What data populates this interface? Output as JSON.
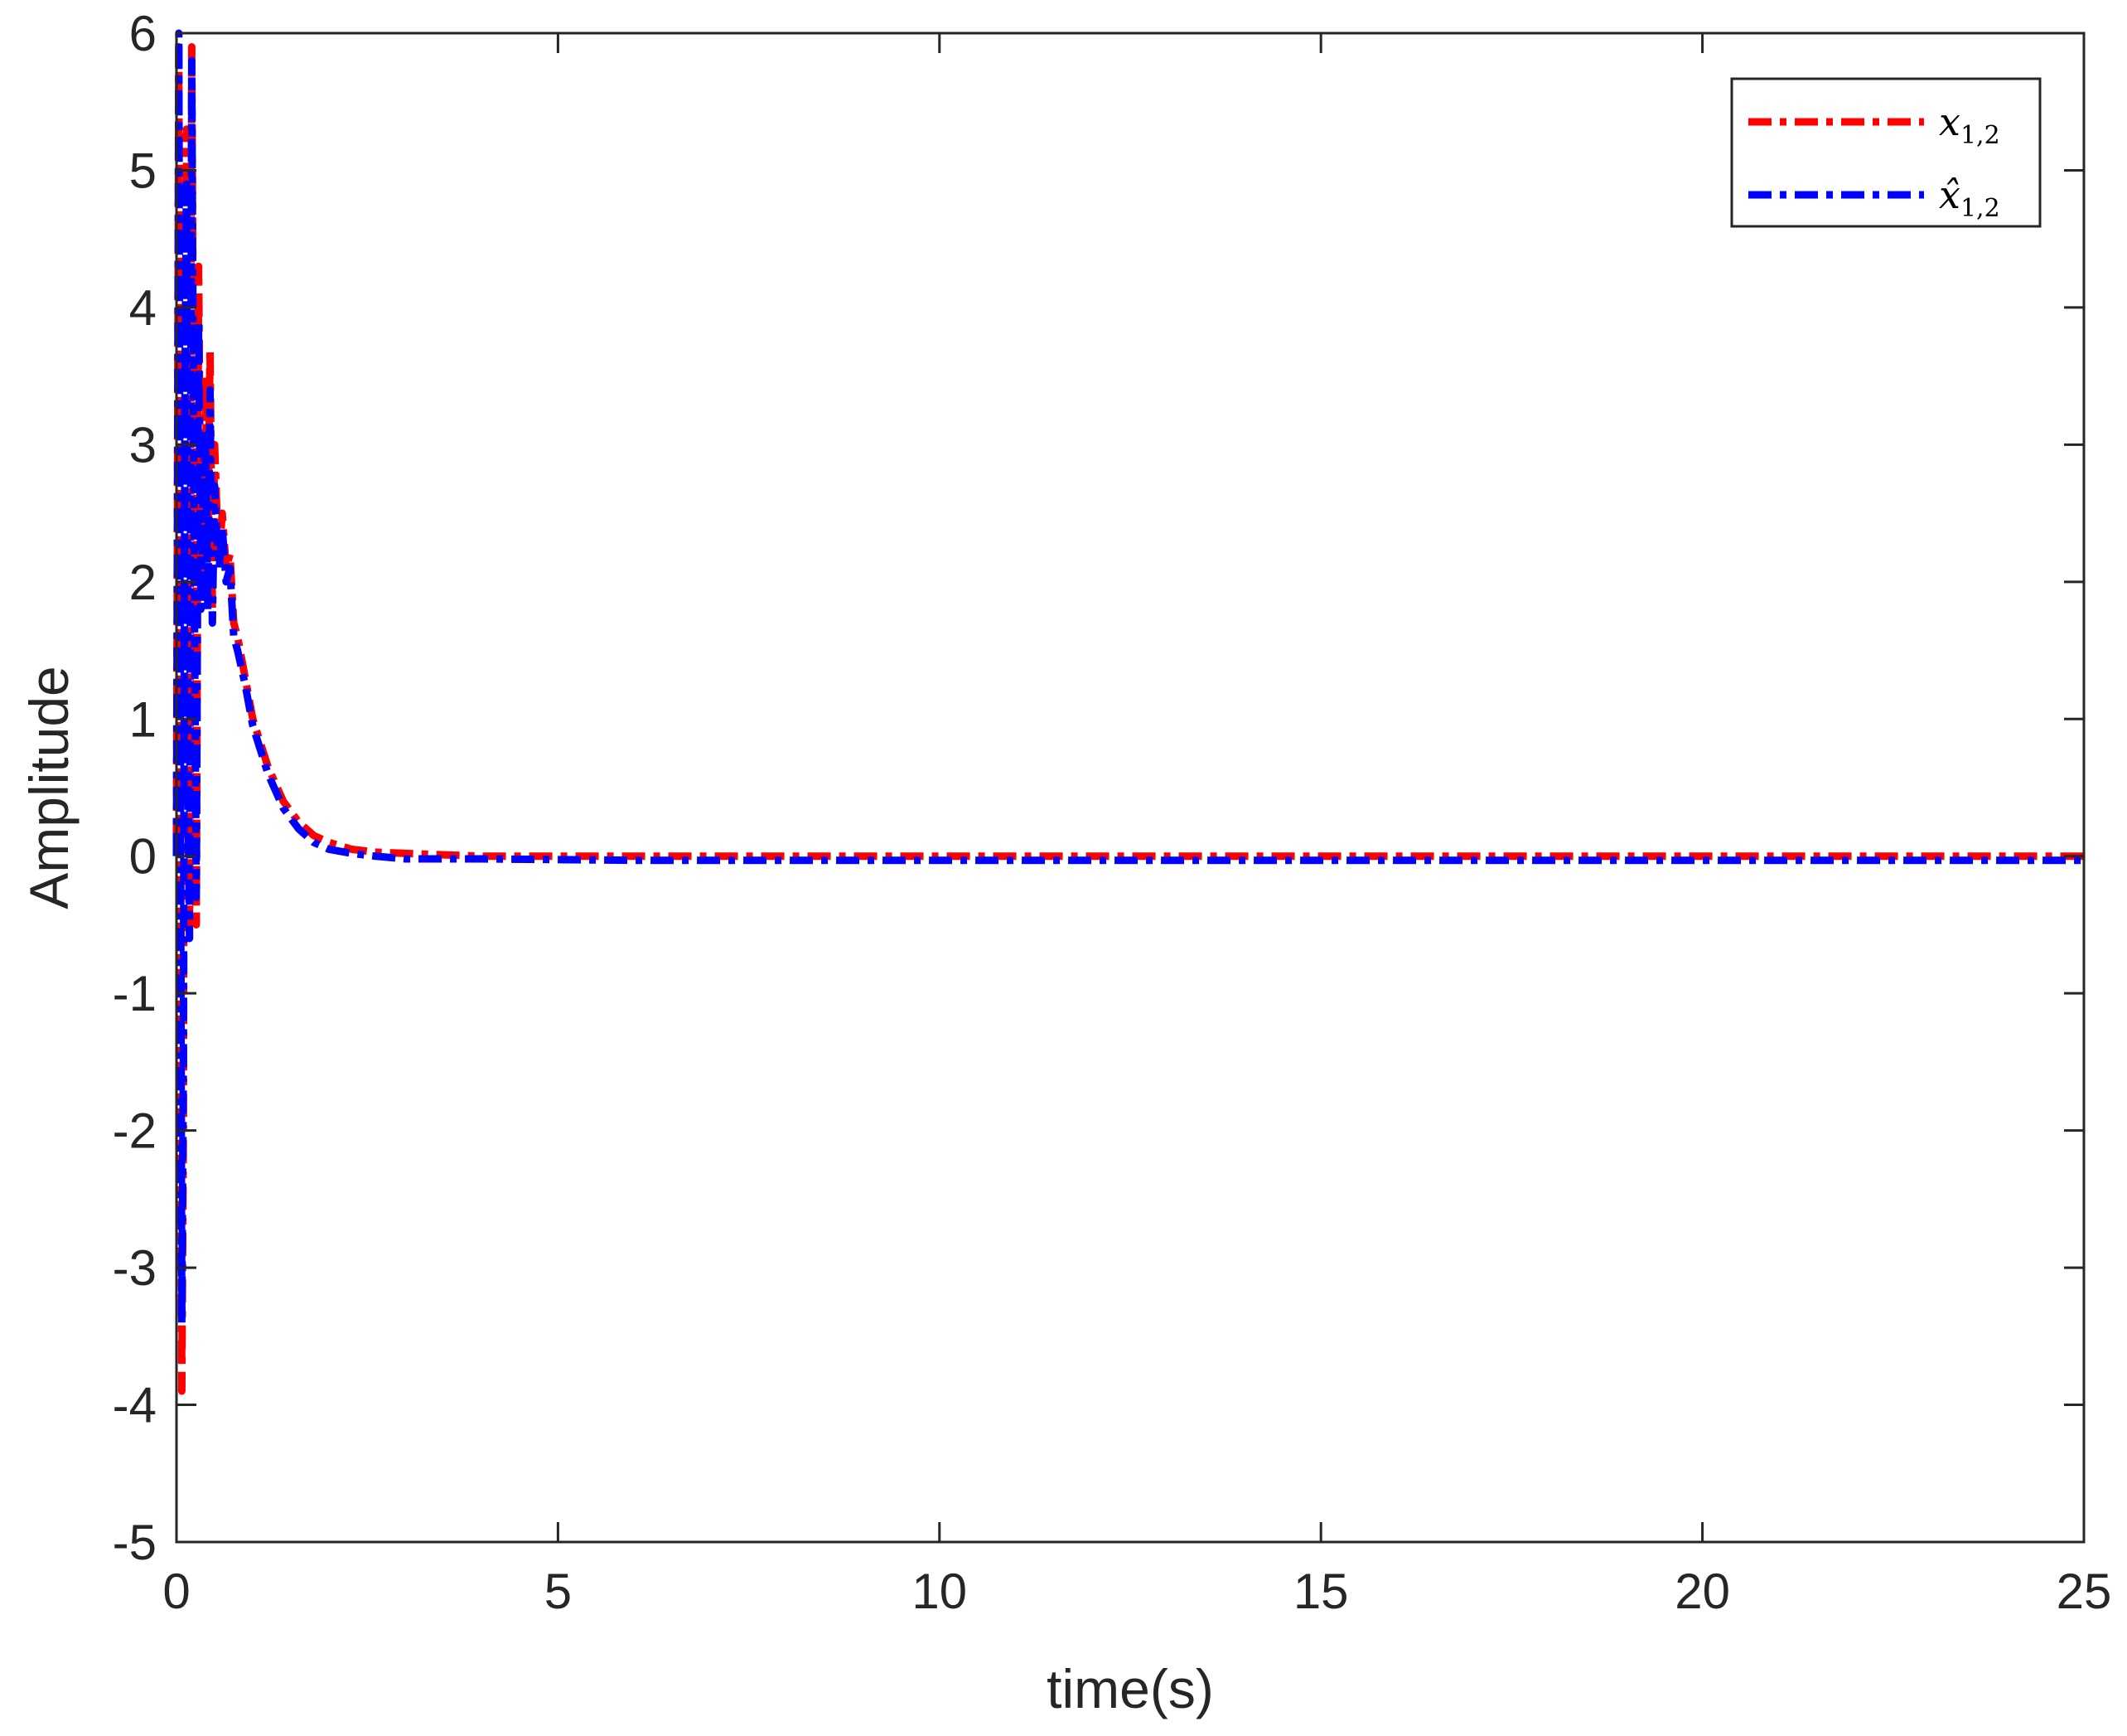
{
  "chart_data": {
    "type": "line",
    "title": "",
    "xlabel": "time(s)",
    "ylabel": "Amplitude",
    "xlim": [
      0,
      25
    ],
    "ylim": [
      -5,
      6
    ],
    "xticks": [
      "0",
      "5",
      "10",
      "15",
      "20",
      "25"
    ],
    "yticks": [
      "-5",
      "-4",
      "-3",
      "-2",
      "-1",
      "0",
      "1",
      "2",
      "3",
      "4",
      "5",
      "6"
    ],
    "grid": false,
    "legend_position": "top-right",
    "series": [
      {
        "name": "x",
        "name_subscript": "1,2",
        "color": "#ff0000",
        "line_style": "dash-dot",
        "x": [
          0.0,
          0.03,
          0.05,
          0.07,
          0.09,
          0.11,
          0.13,
          0.15,
          0.17,
          0.2,
          0.23,
          0.26,
          0.29,
          0.32,
          0.35,
          0.38,
          0.41,
          0.44,
          0.47,
          0.5,
          0.53,
          0.56,
          0.6,
          0.65,
          0.7,
          0.75,
          0.8,
          0.9,
          1.0,
          1.2,
          1.4,
          1.6,
          1.8,
          2.0,
          2.3,
          2.6,
          3.0,
          3.5,
          4.0,
          6.0,
          10.0,
          15.0,
          20.0,
          25.0
        ],
        "y": [
          0.1,
          5.9,
          1.5,
          -3.9,
          -2.0,
          3.7,
          5.3,
          1.0,
          -0.5,
          5.9,
          2.5,
          -0.5,
          4.3,
          2.0,
          2.9,
          3.5,
          2.2,
          3.7,
          1.8,
          3.0,
          2.5,
          2.2,
          2.5,
          2.1,
          2.2,
          1.7,
          1.6,
          1.3,
          1.0,
          0.65,
          0.4,
          0.25,
          0.15,
          0.1,
          0.05,
          0.03,
          0.02,
          0.01,
          0.0,
          0.0,
          0.0,
          0.0,
          0.0,
          0.0
        ]
      },
      {
        "name": "x̂",
        "name_subscript": "1,2",
        "color": "#0000ff",
        "line_style": "dash-dot",
        "x": [
          0.0,
          0.03,
          0.05,
          0.07,
          0.09,
          0.11,
          0.13,
          0.15,
          0.17,
          0.2,
          0.23,
          0.26,
          0.29,
          0.32,
          0.35,
          0.38,
          0.41,
          0.44,
          0.47,
          0.5,
          0.53,
          0.56,
          0.6,
          0.65,
          0.7,
          0.75,
          0.8,
          0.9,
          1.0,
          1.2,
          1.4,
          1.6,
          1.8,
          2.0,
          2.3,
          2.6,
          3.0,
          3.5,
          4.0,
          6.0,
          10.0,
          15.0,
          20.0,
          25.0
        ],
        "y": [
          0.0,
          6.0,
          1.0,
          -3.4,
          -1.5,
          3.3,
          4.9,
          0.5,
          -0.6,
          5.8,
          2.2,
          -0.3,
          3.9,
          1.8,
          2.6,
          3.1,
          1.8,
          3.4,
          1.7,
          2.7,
          2.3,
          2.1,
          2.4,
          2.0,
          2.1,
          1.6,
          1.5,
          1.25,
          0.95,
          0.6,
          0.35,
          0.2,
          0.1,
          0.05,
          0.02,
          0.0,
          -0.02,
          -0.02,
          -0.02,
          -0.03,
          -0.03,
          -0.03,
          -0.03,
          -0.03
        ]
      }
    ]
  }
}
